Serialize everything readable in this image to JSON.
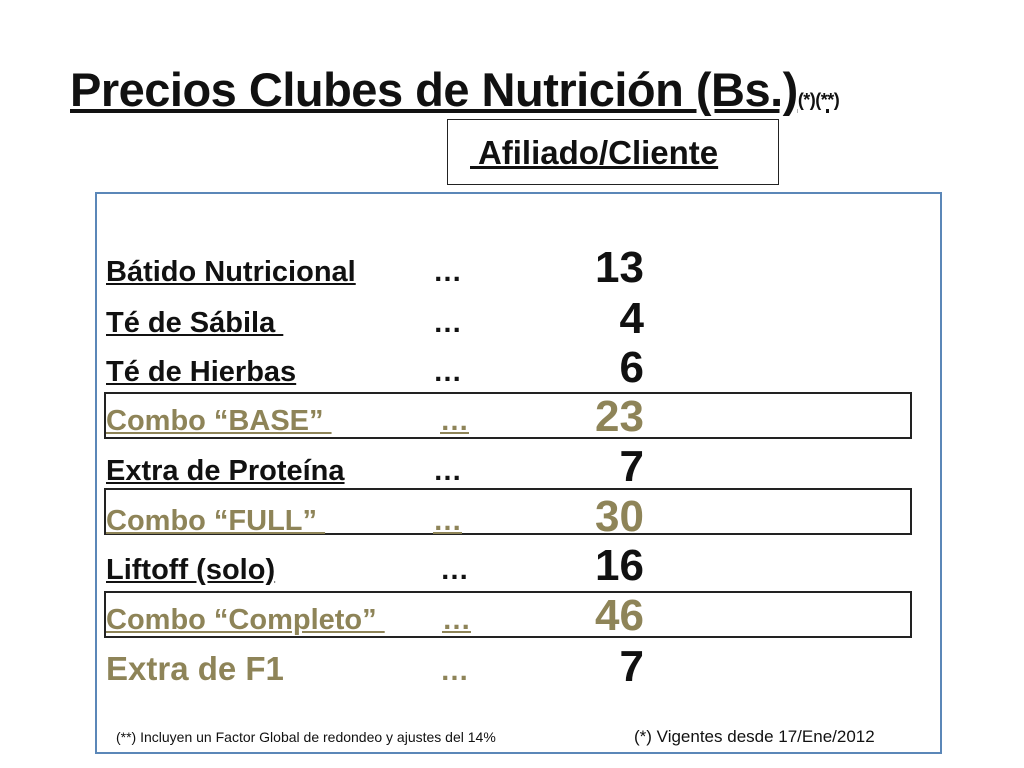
{
  "slide": {
    "title": "Precios Clubes de Nutrición (Bs.)",
    "title_marks": "(*)(**)",
    "subtitle": " Afiliado/Cliente",
    "rows": [
      {
        "label": "Bátido Nutricional",
        "dots": "…",
        "value": "13",
        "style": "normal"
      },
      {
        "label": "Té de Sábila ",
        "dots": "…",
        "value": "4",
        "style": "normal"
      },
      {
        "label": "Té de Hierbas",
        "dots": "…",
        "value": "6",
        "style": "normal"
      },
      {
        "label": "Combo “BASE” ",
        "dots": "…",
        "value": "23",
        "style": "combo"
      },
      {
        "label": "Extra de Proteína",
        "dots": "…",
        "value": "7",
        "style": "normal"
      },
      {
        "label": "Combo “FULL” ",
        "dots": "…",
        "value": "30",
        "style": "combo"
      },
      {
        "label": "Liftoff (solo)",
        "dots": "…",
        "value": "16",
        "style": "normal"
      },
      {
        "label": "Combo “Completo” ",
        "dots": "…",
        "value": "46",
        "style": "combo"
      },
      {
        "label": "Extra de F1",
        "dots": "…",
        "value": "7",
        "style": "f1"
      }
    ],
    "footnote_left": "(**)  Incluyen un Factor Global de redondeo y ajustes del 14%",
    "footnote_right": "(*) Vigentes  desde 17/Ene/2012"
  },
  "colors": {
    "accent_text": "#8e8458",
    "panel_border": "#5b87b8"
  }
}
